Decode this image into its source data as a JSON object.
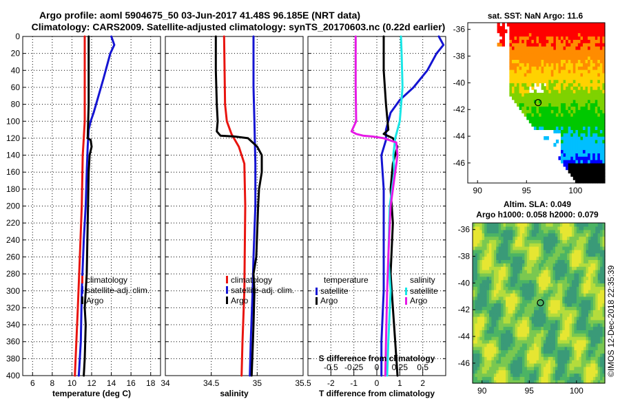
{
  "title": {
    "line1": "Argo profile: aoml 5904675_50 03-Jun-2017 41.48S 96.185E (NRT data)",
    "line2": "Climatology: CARS2009. Satellite-adjusted climatology: synTS_20170603.nc (0.22d earlier)"
  },
  "stamp": "©IMOS 12-Dec-2018 22:35:39",
  "colors": {
    "clim": "#e8140f",
    "sat": "#1414d2",
    "argo": "#000000",
    "sclim": "#e619e6",
    "ssat": "#19e6e6"
  },
  "chart_data": [
    {
      "type": "line",
      "name": "temperature",
      "xlabel": "temperature (deg C)",
      "xlim": [
        5,
        19
      ],
      "xticks": [
        6,
        8,
        10,
        12,
        14,
        16,
        18
      ],
      "ylim": [
        0,
        400
      ],
      "yticks": [
        0,
        20,
        40,
        60,
        80,
        100,
        120,
        140,
        160,
        180,
        200,
        220,
        240,
        260,
        280,
        300,
        320,
        340,
        360,
        380,
        400
      ],
      "legend": [
        "climatology",
        "satellite-adj. clim.",
        "Argo"
      ],
      "series": [
        {
          "name": "climatology",
          "color": "clim",
          "points": [
            [
              11.3,
              0
            ],
            [
              11.3,
              20
            ],
            [
              11.3,
              60
            ],
            [
              11.3,
              100
            ],
            [
              11.2,
              120
            ],
            [
              11.1,
              140
            ],
            [
              11.0,
              200
            ],
            [
              10.8,
              260
            ],
            [
              10.6,
              320
            ],
            [
              10.3,
              400
            ]
          ]
        },
        {
          "name": "satellite-adj. clim.",
          "color": "sat",
          "points": [
            [
              14.0,
              0
            ],
            [
              14.3,
              10
            ],
            [
              13.9,
              20
            ],
            [
              13.2,
              50
            ],
            [
              12.7,
              70
            ],
            [
              12.2,
              90
            ],
            [
              11.9,
              100
            ],
            [
              11.7,
              110
            ],
            [
              11.6,
              130
            ],
            [
              11.5,
              160
            ],
            [
              11.4,
              200
            ],
            [
              11.2,
              240
            ],
            [
              11.0,
              300
            ],
            [
              10.9,
              360
            ],
            [
              10.7,
              400
            ]
          ]
        },
        {
          "name": "Argo",
          "color": "argo",
          "points": [
            [
              11.7,
              0
            ],
            [
              11.7,
              80
            ],
            [
              11.6,
              120
            ],
            [
              11.9,
              122
            ],
            [
              12.0,
              130
            ],
            [
              11.8,
              140
            ],
            [
              11.7,
              160
            ],
            [
              11.6,
              220
            ],
            [
              11.5,
              280
            ],
            [
              11.3,
              320
            ],
            [
              11.4,
              340
            ],
            [
              11.3,
              380
            ],
            [
              11.2,
              400
            ]
          ]
        }
      ]
    },
    {
      "type": "line",
      "name": "salinity",
      "xlabel": "salinity",
      "xlim": [
        34,
        35.5
      ],
      "xticks": [
        34,
        34.5,
        35,
        35.5
      ],
      "xtick_labels": [
        "34",
        "34.5",
        "35",
        "35.5"
      ],
      "ylim": [
        0,
        400
      ],
      "legend": [
        "climatology",
        "satellite-adj. clim.",
        "Argo"
      ],
      "series": [
        {
          "name": "climatology",
          "color": "clim",
          "points": [
            [
              34.64,
              0
            ],
            [
              34.65,
              80
            ],
            [
              34.67,
              100
            ],
            [
              34.72,
              115
            ],
            [
              34.8,
              130
            ],
            [
              34.86,
              150
            ],
            [
              34.87,
              200
            ],
            [
              34.86,
              300
            ],
            [
              34.84,
              360
            ],
            [
              34.83,
              400
            ]
          ]
        },
        {
          "name": "satellite-adj. clim.",
          "color": "sat",
          "points": [
            [
              34.96,
              0
            ],
            [
              34.96,
              60
            ],
            [
              34.97,
              100
            ],
            [
              34.98,
              150
            ],
            [
              34.98,
              200
            ],
            [
              34.96,
              260
            ],
            [
              34.95,
              300
            ],
            [
              34.93,
              360
            ],
            [
              34.92,
              400
            ]
          ]
        },
        {
          "name": "Argo",
          "color": "argo",
          "points": [
            [
              34.55,
              0
            ],
            [
              34.55,
              40
            ],
            [
              34.56,
              80
            ],
            [
              34.57,
              100
            ],
            [
              34.56,
              112
            ],
            [
              34.6,
              117
            ],
            [
              34.75,
              118
            ],
            [
              34.9,
              120
            ],
            [
              35.0,
              130
            ],
            [
              35.05,
              140
            ],
            [
              35.05,
              160
            ],
            [
              35.02,
              180
            ],
            [
              35.01,
              200
            ],
            [
              34.99,
              260
            ],
            [
              34.96,
              280
            ],
            [
              34.97,
              300
            ],
            [
              34.96,
              340
            ],
            [
              34.95,
              370
            ],
            [
              34.94,
              400
            ]
          ]
        }
      ]
    },
    {
      "type": "line",
      "name": "difference",
      "xlabel": "T difference from climatology",
      "xlabel_top": "S difference from climatology",
      "xlim": [
        -3,
        3
      ],
      "xticks": [
        -2,
        -1,
        0,
        1,
        2
      ],
      "top_ticks": [
        -0.5,
        -0.25,
        0,
        0.25,
        0.5
      ],
      "top_tick_labels": [
        "-0.5",
        "-0.25",
        "0",
        "0.25",
        "0.5"
      ],
      "ylim": [
        0,
        400
      ],
      "legend_titles": [
        "temperature",
        "salinity"
      ],
      "legend_t": [
        "satellite",
        "Argo"
      ],
      "legend_s": [
        "satellite",
        "Argo"
      ],
      "series": [
        {
          "name": "T satellite",
          "color": "sat",
          "points": [
            [
              2.7,
              0
            ],
            [
              2.9,
              10
            ],
            [
              2.6,
              20
            ],
            [
              2.2,
              40
            ],
            [
              1.6,
              60
            ],
            [
              1.0,
              75
            ],
            [
              0.6,
              90
            ],
            [
              0.4,
              110
            ],
            [
              0.4,
              122
            ],
            [
              0.2,
              140
            ],
            [
              0.3,
              180
            ],
            [
              0.3,
              300
            ],
            [
              0.2,
              360
            ],
            [
              0.2,
              400
            ]
          ]
        },
        {
          "name": "T Argo",
          "color": "argo",
          "points": [
            [
              0.3,
              0
            ],
            [
              0.3,
              40
            ],
            [
              0.4,
              80
            ],
            [
              0.5,
              110
            ],
            [
              0.3,
              115
            ],
            [
              0.7,
              120
            ],
            [
              0.9,
              130
            ],
            [
              0.7,
              150
            ],
            [
              0.6,
              180
            ],
            [
              0.7,
              220
            ],
            [
              0.6,
              280
            ],
            [
              0.7,
              320
            ],
            [
              0.8,
              360
            ],
            [
              0.9,
              400
            ]
          ]
        },
        {
          "name": "S satellite",
          "color": "ssat",
          "points": [
            [
              1.05,
              0
            ],
            [
              1.08,
              20
            ],
            [
              1.12,
              60
            ],
            [
              1.0,
              100
            ],
            [
              0.8,
              120
            ],
            [
              0.72,
              140
            ],
            [
              0.76,
              160
            ],
            [
              0.56,
              200
            ],
            [
              0.5,
              260
            ],
            [
              0.6,
              300
            ],
            [
              0.5,
              360
            ],
            [
              0.45,
              400
            ]
          ]
        },
        {
          "name": "S Argo",
          "color": "sclim",
          "points": [
            [
              -0.92,
              0
            ],
            [
              -0.92,
              60
            ],
            [
              -0.9,
              100
            ],
            [
              -1.1,
              112
            ],
            [
              -0.9,
              115
            ],
            [
              -0.6,
              117
            ],
            [
              -0.2,
              118
            ],
            [
              0.3,
              120
            ],
            [
              0.85,
              125
            ],
            [
              0.9,
              140
            ],
            [
              0.8,
              160
            ],
            [
              0.6,
              200
            ],
            [
              0.5,
              260
            ],
            [
              0.45,
              300
            ],
            [
              0.4,
              360
            ],
            [
              0.37,
              400
            ]
          ]
        }
      ]
    },
    {
      "type": "heatmap",
      "name": "sst-map",
      "title": "sat. SST: NaN Argo: 11.6",
      "xlim": [
        89,
        103
      ],
      "ylim": [
        -47.5,
        -35.5
      ],
      "xticks": [
        90,
        95,
        100
      ],
      "yticks": [
        -36,
        -38,
        -40,
        -42,
        -44,
        -46
      ],
      "marker": [
        96.185,
        -41.48
      ]
    },
    {
      "type": "heatmap",
      "name": "sla-map",
      "title1": "Altim. SLA: 0.049",
      "title2": "Argo h1000: 0.058 h2000: 0.079",
      "xlim": [
        89,
        103
      ],
      "ylim": [
        -47.5,
        -35.5
      ],
      "xticks": [
        90,
        95,
        100
      ],
      "yticks": [
        -36,
        -38,
        -40,
        -42,
        -44,
        -46
      ],
      "marker": [
        96.185,
        -41.48
      ]
    }
  ]
}
